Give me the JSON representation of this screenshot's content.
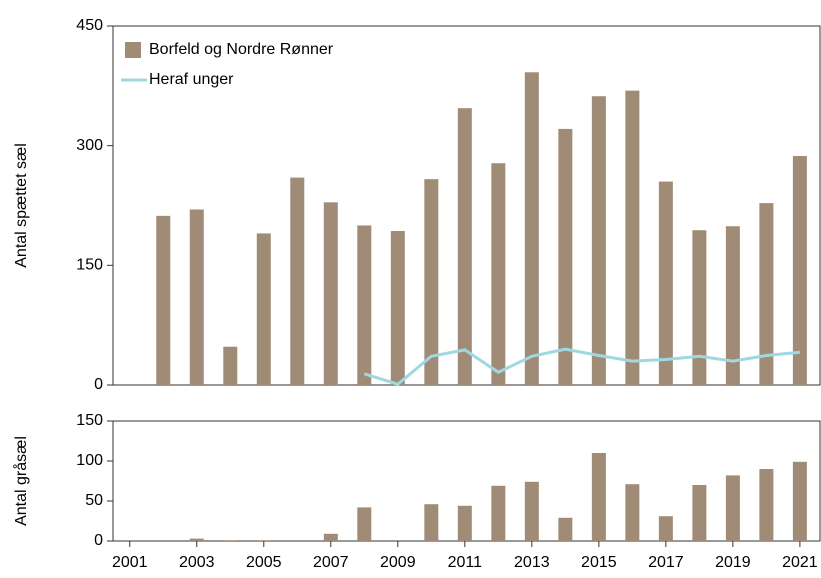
{
  "chart_data": [
    {
      "type": "bar",
      "ylabel": "Antal spættet sæl",
      "x": [
        2002,
        2003,
        2004,
        2005,
        2006,
        2007,
        2008,
        2009,
        2010,
        2011,
        2012,
        2013,
        2014,
        2015,
        2016,
        2017,
        2018,
        2019,
        2020,
        2021
      ],
      "series": [
        {
          "name": "Borfeld og Nordre Rønner",
          "type": "bar",
          "color": "#a08c76",
          "values": [
            212,
            220,
            48,
            190,
            260,
            229,
            200,
            193,
            258,
            347,
            278,
            392,
            321,
            362,
            369,
            255,
            194,
            199,
            228,
            287
          ]
        },
        {
          "name": "Heraf unger",
          "type": "line",
          "color": "#9fd8e0",
          "values": [
            null,
            null,
            null,
            null,
            null,
            null,
            14,
            1,
            36,
            44,
            16,
            36,
            45,
            37,
            30,
            32,
            36,
            30,
            37,
            41
          ]
        }
      ],
      "xlim": [
        2000.5,
        2021.6
      ],
      "ylim": [
        0,
        450
      ],
      "yticks": [
        0,
        150,
        300,
        450
      ],
      "legend": "upper left"
    },
    {
      "type": "bar",
      "ylabel": "Antal gråsæl",
      "x": [
        2002,
        2003,
        2004,
        2005,
        2006,
        2007,
        2008,
        2009,
        2010,
        2011,
        2012,
        2013,
        2014,
        2015,
        2016,
        2017,
        2018,
        2019,
        2020,
        2021
      ],
      "series": [
        {
          "type": "bar",
          "color": "#a08c76",
          "values": [
            0,
            3,
            1,
            1,
            0,
            9,
            42,
            0,
            46,
            44,
            69,
            74,
            29,
            110,
            71,
            31,
            70,
            82,
            90,
            99
          ]
        }
      ],
      "xlim": [
        2000.5,
        2021.6
      ],
      "ylim": [
        0,
        150
      ],
      "yticks": [
        0,
        50,
        100,
        150
      ],
      "xticks": [
        2001,
        2003,
        2005,
        2007,
        2009,
        2011,
        2013,
        2015,
        2017,
        2019,
        2021
      ]
    }
  ]
}
